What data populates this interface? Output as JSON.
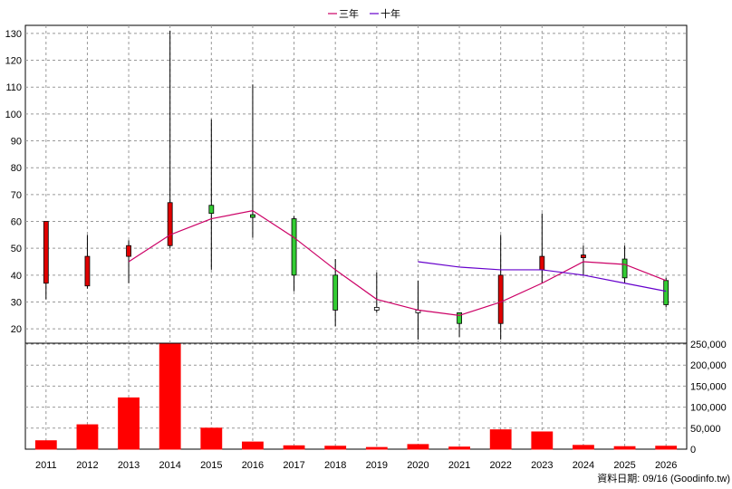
{
  "chart_data": {
    "type": "candlestick",
    "legend": {
      "placement": "top-center",
      "items": [
        {
          "label": "三年",
          "color": "#cc0066"
        },
        {
          "label": "十年",
          "color": "#6600cc"
        }
      ]
    },
    "colors": {
      "up": "#e00000",
      "down": "#33cc33",
      "flat": "#ffffff",
      "volume": "#ff0000",
      "grid": "#999999"
    },
    "x": [
      "2011",
      "2012",
      "2013",
      "2014",
      "2015",
      "2016",
      "2017",
      "2018",
      "2019",
      "2020",
      "2021",
      "2022",
      "2023",
      "2024",
      "2025",
      "2026"
    ],
    "price_axis": {
      "ylim": [
        15,
        133
      ],
      "ticks": [
        20,
        30,
        40,
        50,
        60,
        70,
        80,
        90,
        100,
        110,
        120,
        130
      ]
    },
    "volume_axis": {
      "ylim": [
        0,
        250000
      ],
      "ticks": [
        0,
        50000,
        100000,
        150000,
        200000,
        250000
      ],
      "tick_labels": [
        "0",
        "50,000",
        "100,000",
        "150,000",
        "200,000",
        "250,000"
      ]
    },
    "candles": [
      {
        "open": 37,
        "high": 60,
        "low": 31,
        "close": 60
      },
      {
        "open": 36,
        "high": 55,
        "low": 35,
        "close": 47
      },
      {
        "open": 47,
        "high": 53,
        "low": 37,
        "close": 51
      },
      {
        "open": 51,
        "high": 131,
        "low": 50,
        "close": 67
      },
      {
        "open": 66,
        "high": 98,
        "low": 42,
        "close": 63
      },
      {
        "open": 62,
        "high": 111,
        "low": 54,
        "close": 61
      },
      {
        "open": 61,
        "high": 62,
        "low": 34,
        "close": 40
      },
      {
        "open": 40,
        "high": 46,
        "low": 21,
        "close": 27
      },
      {
        "open": 28,
        "high": 41,
        "low": 26,
        "close": 28
      },
      {
        "open": 27,
        "high": 38,
        "low": 16,
        "close": 27
      },
      {
        "open": 26,
        "high": 26,
        "low": 17,
        "close": 22
      },
      {
        "open": 22,
        "high": 55,
        "low": 16,
        "close": 40
      },
      {
        "open": 42,
        "high": 63,
        "low": 37,
        "close": 47
      },
      {
        "open": 46,
        "high": 51,
        "low": 40,
        "close": 47
      },
      {
        "open": 46,
        "high": 51,
        "low": 37,
        "close": 39
      },
      {
        "open": 38,
        "high": 39,
        "low": 28,
        "close": 29
      }
    ],
    "series": [
      {
        "name": "三年",
        "values": [
          null,
          null,
          45,
          55,
          61,
          64,
          54,
          42,
          31,
          27,
          25,
          30,
          37,
          45,
          44,
          38
        ]
      },
      {
        "name": "十年",
        "values": [
          null,
          null,
          null,
          null,
          null,
          null,
          null,
          null,
          null,
          45,
          43,
          42,
          42,
          40,
          37,
          34
        ]
      }
    ],
    "volume": [
      20000,
      58000,
      122000,
      250000,
      50000,
      17000,
      8000,
      7000,
      4000,
      11000,
      5000,
      46000,
      41000,
      9000,
      6000,
      7000
    ],
    "footer": "資料日期: 09/16 (Goodinfo.tw)"
  }
}
